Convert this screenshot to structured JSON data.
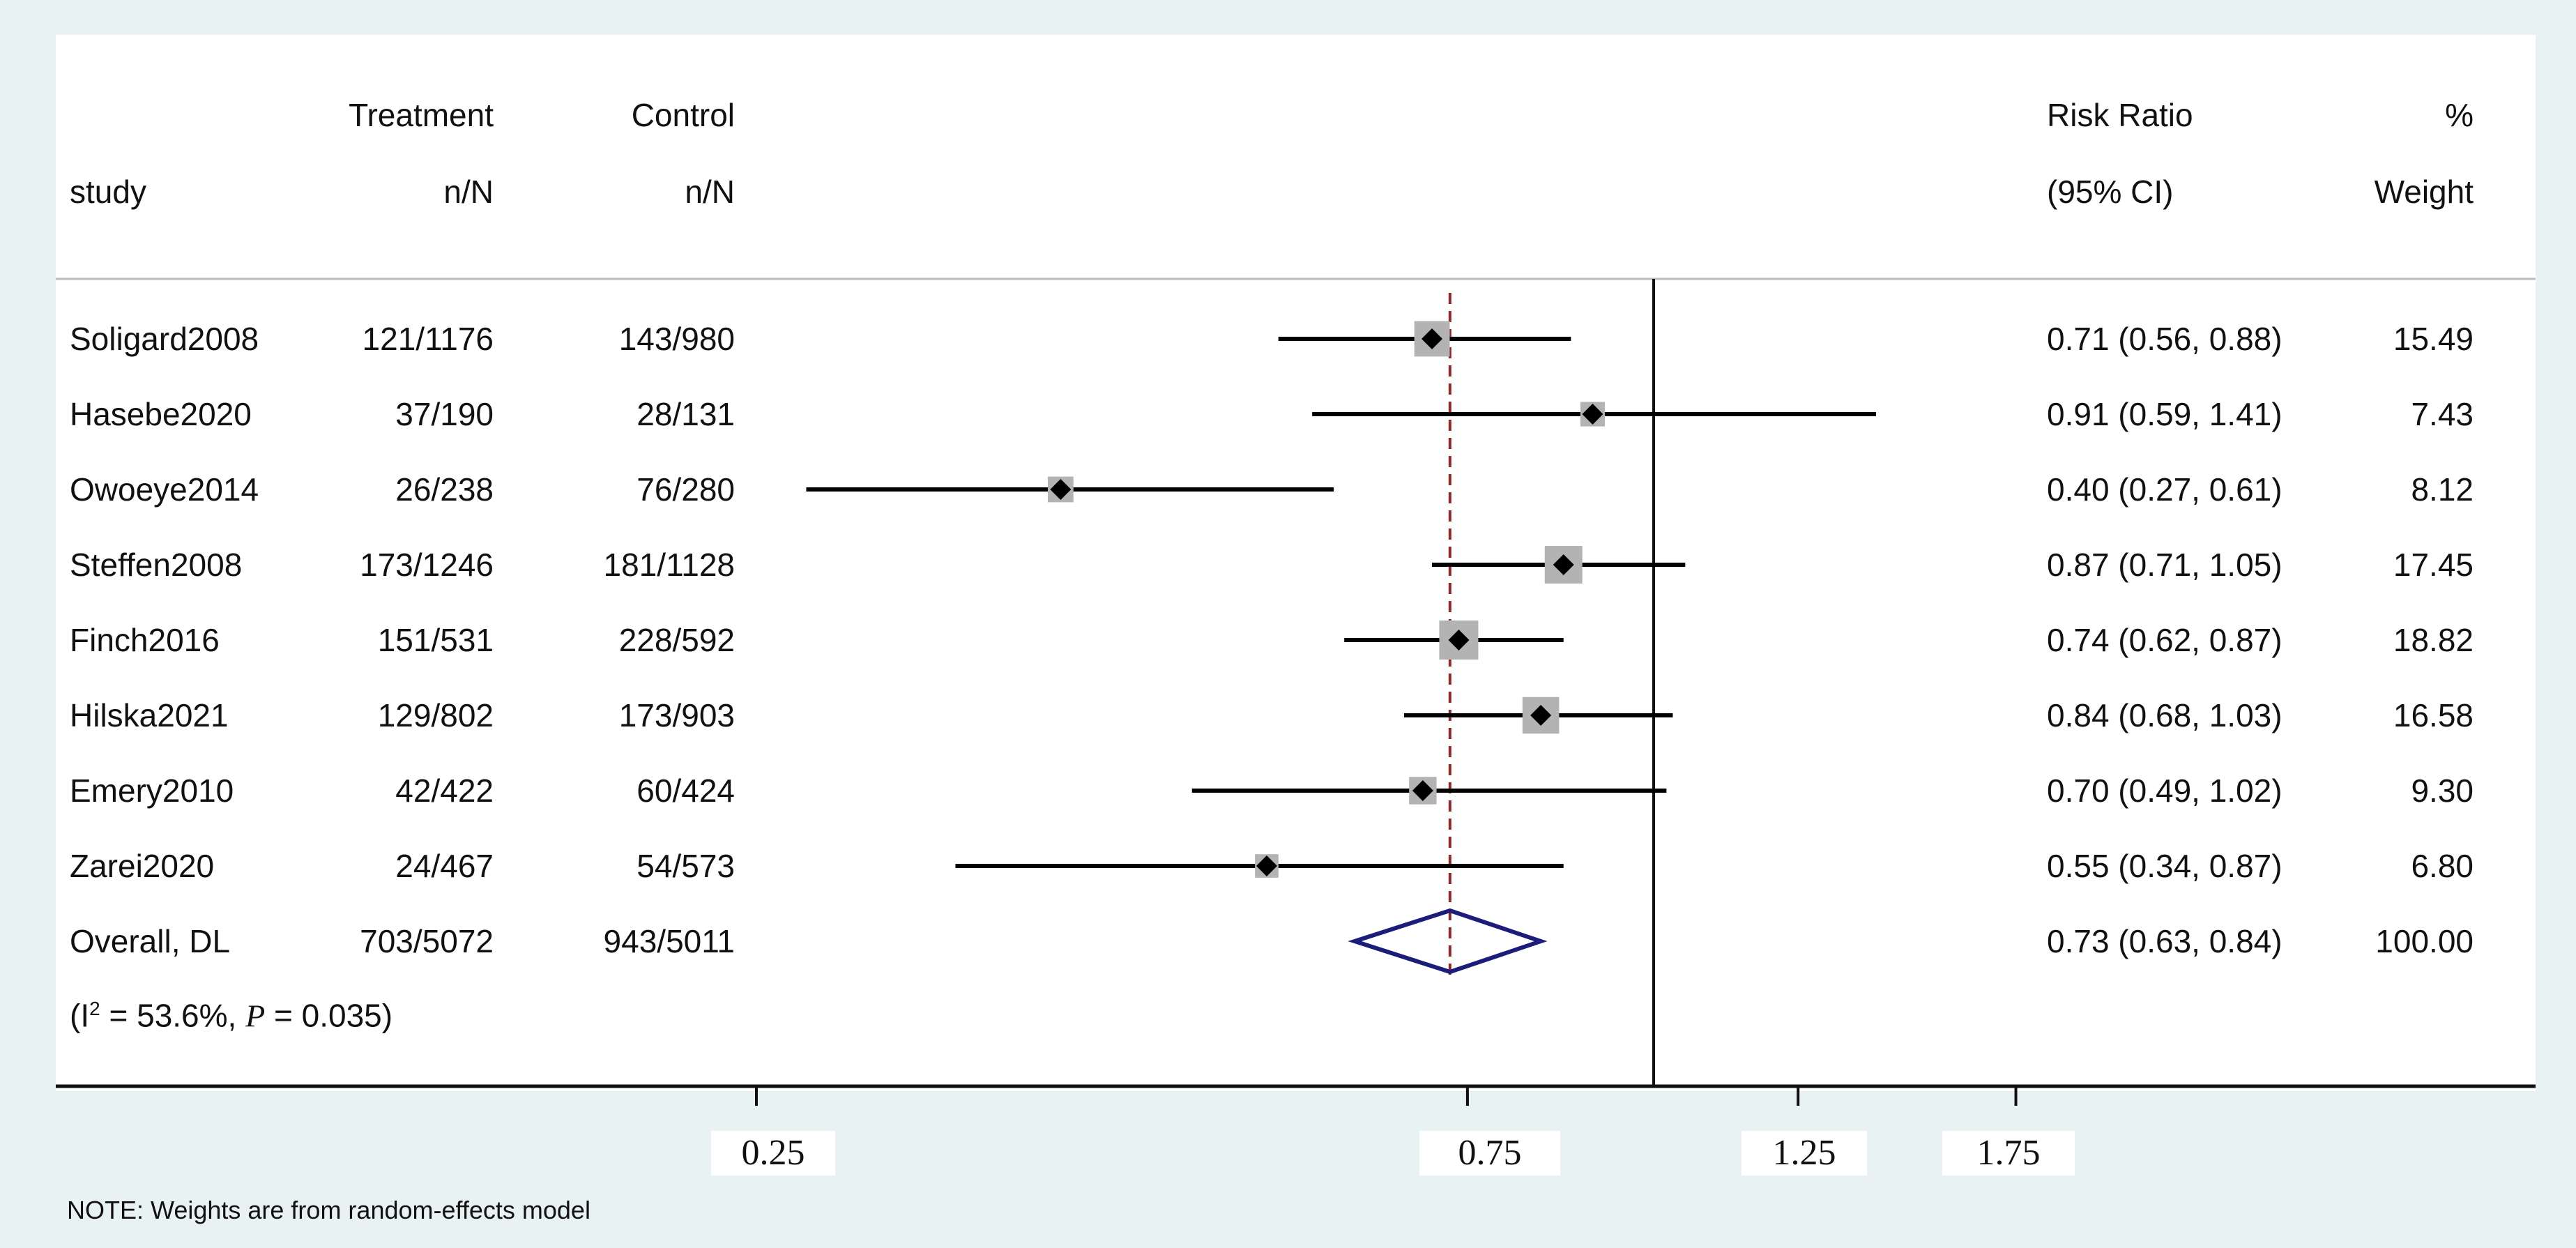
{
  "chart_data": {
    "type": "forest",
    "headers": {
      "study": "study",
      "treatment_top": "Treatment",
      "treatment_bottom": "n/N",
      "control_top": "Control",
      "control_bottom": "n/N",
      "rr_top": "Risk Ratio",
      "rr_bottom": "(95% CI)",
      "weight_top": "%",
      "weight_bottom": "Weight"
    },
    "studies": [
      {
        "name": "Soligard2008",
        "treatment": "121/1176",
        "control": "143/980",
        "rr": 0.71,
        "lo": 0.56,
        "hi": 0.88,
        "ci_text": "0.71 (0.56, 0.88)",
        "weight": 15.49,
        "weight_text": "15.49"
      },
      {
        "name": "Hasebe2020",
        "treatment": "37/190",
        "control": "28/131",
        "rr": 0.91,
        "lo": 0.59,
        "hi": 1.41,
        "ci_text": "0.91 (0.59, 1.41)",
        "weight": 7.43,
        "weight_text": "7.43"
      },
      {
        "name": "Owoeye2014",
        "treatment": "26/238",
        "control": "76/280",
        "rr": 0.4,
        "lo": 0.27,
        "hi": 0.61,
        "ci_text": "0.40 (0.27, 0.61)",
        "weight": 8.12,
        "weight_text": "8.12"
      },
      {
        "name": "Steffen2008",
        "treatment": "173/1246",
        "control": "181/1128",
        "rr": 0.87,
        "lo": 0.71,
        "hi": 1.05,
        "ci_text": "0.87 (0.71, 1.05)",
        "weight": 17.45,
        "weight_text": "17.45"
      },
      {
        "name": "Finch2016",
        "treatment": "151/531",
        "control": "228/592",
        "rr": 0.74,
        "lo": 0.62,
        "hi": 0.87,
        "ci_text": "0.74 (0.62, 0.87)",
        "weight": 18.82,
        "weight_text": "18.82"
      },
      {
        "name": "Hilska2021",
        "treatment": "129/802",
        "control": "173/903",
        "rr": 0.84,
        "lo": 0.68,
        "hi": 1.03,
        "ci_text": "0.84 (0.68, 1.03)",
        "weight": 16.58,
        "weight_text": "16.58"
      },
      {
        "name": "Emery2010",
        "treatment": "42/422",
        "control": "60/424",
        "rr": 0.7,
        "lo": 0.49,
        "hi": 1.02,
        "ci_text": "0.70 (0.49, 1.02)",
        "weight": 9.3,
        "weight_text": "9.30"
      },
      {
        "name": "Zarei2020",
        "treatment": "24/467",
        "control": "54/573",
        "rr": 0.55,
        "lo": 0.34,
        "hi": 0.87,
        "ci_text": "0.55 (0.34, 0.87)",
        "weight": 6.8,
        "weight_text": "6.80"
      }
    ],
    "overall": {
      "name": "Overall, DL",
      "treatment": "703/5072",
      "control": "943/5011",
      "rr": 0.73,
      "lo": 0.63,
      "hi": 0.84,
      "ci_text": "0.73 (0.63, 0.84)",
      "weight_text": "100.00"
    },
    "heterogeneity": {
      "prefix": "(I",
      "sup": "2",
      "mid": " = 53.6%, ",
      "p": "P",
      "suffix": " = 0.035)"
    },
    "x_ticks": [
      {
        "value": 0.25,
        "label": "0.25"
      },
      {
        "value": 0.75,
        "label": "0.75"
      },
      {
        "value": 1.25,
        "label": "1.25"
      },
      {
        "value": 1.75,
        "label": "1.75"
      }
    ],
    "null_line": 1,
    "scale": "log",
    "note": "NOTE: Weights are from random-effects model",
    "colors": {
      "ci_line": "#000000",
      "marker": "#000000",
      "weight_box": "#b3b3b3",
      "diamond": "#1c1c7a",
      "overall_line": "#8b2a2a"
    }
  }
}
